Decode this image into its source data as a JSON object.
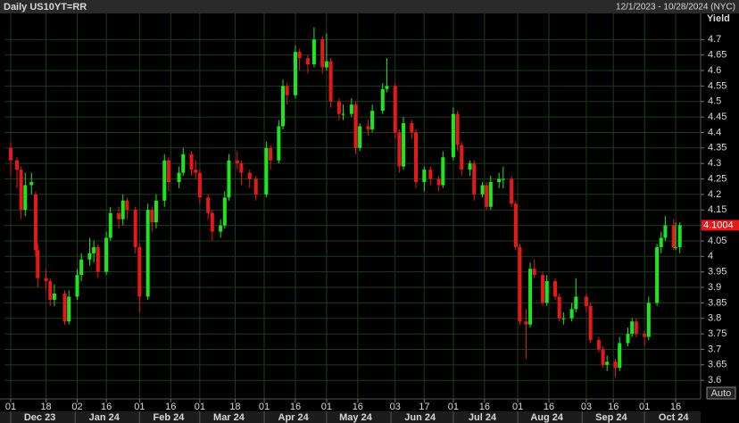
{
  "chart_data": {
    "type": "candlestick",
    "title": "Daily US10YT=RR",
    "subtitle": "12/1/2023 - 10/28/2024 (NYC)",
    "y_label": "Yield",
    "auto_button": "Auto",
    "up_color": "#1ee61e",
    "down_color": "#e81818",
    "grid": true,
    "xlim": [
      "2023-11-28",
      "2024-10-28"
    ],
    "ylim": [
      3.54,
      4.77
    ],
    "yticks": [
      3.6,
      3.65,
      3.7,
      3.75,
      3.8,
      3.85,
      3.9,
      3.95,
      4,
      4.05,
      4.1,
      4.15,
      4.2,
      4.25,
      4.3,
      4.35,
      4.4,
      4.45,
      4.5,
      4.55,
      4.6,
      4.65,
      4.7
    ],
    "xticks": [
      {
        "value": "2023-12-01",
        "label": "01"
      },
      {
        "value": "2023-12-18",
        "label": "18"
      },
      {
        "value": "2024-01-02",
        "label": "02"
      },
      {
        "value": "2024-01-16",
        "label": "16"
      },
      {
        "value": "2024-02-01",
        "label": "01"
      },
      {
        "value": "2024-02-16",
        "label": "16"
      },
      {
        "value": "2024-03-01",
        "label": "01"
      },
      {
        "value": "2024-03-18",
        "label": "18"
      },
      {
        "value": "2024-04-01",
        "label": "01"
      },
      {
        "value": "2024-04-16",
        "label": "16"
      },
      {
        "value": "2024-05-01",
        "label": "01"
      },
      {
        "value": "2024-05-16",
        "label": "16"
      },
      {
        "value": "2024-06-03",
        "label": "03"
      },
      {
        "value": "2024-06-17",
        "label": "17"
      },
      {
        "value": "2024-07-01",
        "label": "01"
      },
      {
        "value": "2024-07-16",
        "label": "16"
      },
      {
        "value": "2024-08-01",
        "label": "01"
      },
      {
        "value": "2024-08-16",
        "label": "16"
      },
      {
        "value": "2024-09-03",
        "label": "03"
      },
      {
        "value": "2024-09-16",
        "label": "16"
      },
      {
        "value": "2024-10-01",
        "label": "01"
      },
      {
        "value": "2024-10-16",
        "label": "16"
      }
    ],
    "month_labels": [
      {
        "value": "2023-12-01",
        "label": "Dec 23"
      },
      {
        "value": "2024-01-01",
        "label": "Jan 24"
      },
      {
        "value": "2024-02-01",
        "label": "Feb 24"
      },
      {
        "value": "2024-03-01",
        "label": "Mar 24"
      },
      {
        "value": "2024-04-01",
        "label": "Apr 24"
      },
      {
        "value": "2024-05-01",
        "label": "May 24"
      },
      {
        "value": "2024-06-01",
        "label": "Jun 24"
      },
      {
        "value": "2024-07-01",
        "label": "Jul 24"
      },
      {
        "value": "2024-08-01",
        "label": "Aug 24"
      },
      {
        "value": "2024-09-01",
        "label": "Sep 24"
      },
      {
        "value": "2024-10-01",
        "label": "Oct 24"
      }
    ],
    "series": [
      {
        "name": "US10YT=RR",
        "x": [
          "2023-12-01",
          "2023-12-04",
          "2023-12-06",
          "2023-12-08",
          "2023-12-11",
          "2023-12-13",
          "2023-12-14",
          "2023-12-18",
          "2023-12-20",
          "2023-12-22",
          "2023-12-27",
          "2023-12-29",
          "2024-01-02",
          "2024-01-04",
          "2024-01-08",
          "2024-01-10",
          "2024-01-12",
          "2024-01-16",
          "2024-01-18",
          "2024-01-22",
          "2024-01-24",
          "2024-01-26",
          "2024-01-30",
          "2024-02-01",
          "2024-02-05",
          "2024-02-07",
          "2024-02-09",
          "2024-02-13",
          "2024-02-15",
          "2024-02-20",
          "2024-02-22",
          "2024-02-26",
          "2024-02-28",
          "2024-03-01",
          "2024-03-05",
          "2024-03-07",
          "2024-03-11",
          "2024-03-13",
          "2024-03-15",
          "2024-03-19",
          "2024-03-21",
          "2024-03-25",
          "2024-03-28",
          "2024-04-02",
          "2024-04-04",
          "2024-04-08",
          "2024-04-10",
          "2024-04-12",
          "2024-04-16",
          "2024-04-18",
          "2024-04-22",
          "2024-04-25",
          "2024-04-29",
          "2024-05-01",
          "2024-05-03",
          "2024-05-07",
          "2024-05-09",
          "2024-05-13",
          "2024-05-15",
          "2024-05-17",
          "2024-05-21",
          "2024-05-23",
          "2024-05-28",
          "2024-05-30",
          "2024-06-03",
          "2024-06-05",
          "2024-06-07",
          "2024-06-11",
          "2024-06-13",
          "2024-06-17",
          "2024-06-20",
          "2024-06-24",
          "2024-06-26",
          "2024-07-01",
          "2024-07-03",
          "2024-07-05",
          "2024-07-09",
          "2024-07-11",
          "2024-07-15",
          "2024-07-17",
          "2024-07-19",
          "2024-07-23",
          "2024-07-25",
          "2024-07-29",
          "2024-07-31",
          "2024-08-02",
          "2024-08-05",
          "2024-08-07",
          "2024-08-09",
          "2024-08-13",
          "2024-08-15",
          "2024-08-19",
          "2024-08-21",
          "2024-08-23",
          "2024-08-27",
          "2024-08-29",
          "2024-09-03",
          "2024-09-05",
          "2024-09-09",
          "2024-09-11",
          "2024-09-13",
          "2024-09-17",
          "2024-09-19",
          "2024-09-23",
          "2024-09-25",
          "2024-09-27",
          "2024-10-01",
          "2024-10-03",
          "2024-10-07",
          "2024-10-09",
          "2024-10-11",
          "2024-10-15",
          "2024-10-16",
          "2024-10-18"
        ],
        "open": [
          4.35,
          4.31,
          4.28,
          4.15,
          4.23,
          4.2,
          4.02,
          3.93,
          3.92,
          3.86,
          3.88,
          3.79,
          3.87,
          3.94,
          3.99,
          4.01,
          4.03,
          3.95,
          4.06,
          4.14,
          4.12,
          4.18,
          4.15,
          4.03,
          3.87,
          4.15,
          4.11,
          4.18,
          4.31,
          4.24,
          4.27,
          4.33,
          4.28,
          4.27,
          4.19,
          4.14,
          4.08,
          4.1,
          4.19,
          4.31,
          4.3,
          4.27,
          4.25,
          4.2,
          4.35,
          4.31,
          4.42,
          4.55,
          4.52,
          4.66,
          4.64,
          4.62,
          4.7,
          4.61,
          4.63,
          4.5,
          4.46,
          4.46,
          4.49,
          4.35,
          4.42,
          4.41,
          4.47,
          4.54,
          4.55,
          4.4,
          4.29,
          4.43,
          4.4,
          4.24,
          4.28,
          4.25,
          4.23,
          4.32,
          4.46,
          4.36,
          4.28,
          4.3,
          4.2,
          4.23,
          4.16,
          4.24,
          4.25,
          4.25,
          4.17,
          4.03,
          3.79,
          3.78,
          3.96,
          3.94,
          3.85,
          3.92,
          3.87,
          3.8,
          3.8,
          3.83,
          3.87,
          3.84,
          3.73,
          3.7,
          3.65,
          3.66,
          3.64,
          3.72,
          3.75,
          3.79,
          3.75,
          3.74,
          3.85,
          4.03,
          4.06,
          4.1,
          4.03,
          4.03
        ],
        "high": [
          4.37,
          4.32,
          4.29,
          4.27,
          4.27,
          4.21,
          4.04,
          3.96,
          3.93,
          3.91,
          3.89,
          3.89,
          3.96,
          4.01,
          4.06,
          4.05,
          4.04,
          4.08,
          4.16,
          4.16,
          4.2,
          4.19,
          4.16,
          4.04,
          4.17,
          4.16,
          4.2,
          4.33,
          4.32,
          4.29,
          4.35,
          4.34,
          4.31,
          4.28,
          4.2,
          4.15,
          4.12,
          4.21,
          4.33,
          4.34,
          4.31,
          4.28,
          4.26,
          4.37,
          4.36,
          4.44,
          4.57,
          4.56,
          4.68,
          4.67,
          4.65,
          4.74,
          4.71,
          4.72,
          4.64,
          4.51,
          4.49,
          4.51,
          4.5,
          4.43,
          4.44,
          4.49,
          4.56,
          4.64,
          4.56,
          4.41,
          4.45,
          4.44,
          4.41,
          4.29,
          4.29,
          4.26,
          4.34,
          4.48,
          4.47,
          4.37,
          4.31,
          4.31,
          4.24,
          4.24,
          4.26,
          4.27,
          4.29,
          4.26,
          4.18,
          4.04,
          3.83,
          3.98,
          3.99,
          3.95,
          3.94,
          3.93,
          3.88,
          3.82,
          3.85,
          3.93,
          3.88,
          3.85,
          3.74,
          3.71,
          3.68,
          3.67,
          3.74,
          3.77,
          3.8,
          3.8,
          3.76,
          3.87,
          4.04,
          4.08,
          4.13,
          4.12,
          4.11,
          4.11
        ],
        "low": [
          4.26,
          4.22,
          4.12,
          4.13,
          4.2,
          4.0,
          3.9,
          3.89,
          3.84,
          3.84,
          3.78,
          3.78,
          3.86,
          3.92,
          3.97,
          3.98,
          3.93,
          3.94,
          4.05,
          4.09,
          4.1,
          4.12,
          4.01,
          3.82,
          3.86,
          4.08,
          4.09,
          4.16,
          4.21,
          4.22,
          4.26,
          4.26,
          4.25,
          4.17,
          4.12,
          4.05,
          4.06,
          4.09,
          4.18,
          4.28,
          4.23,
          4.22,
          4.18,
          4.19,
          4.28,
          4.3,
          4.41,
          4.49,
          4.51,
          4.6,
          4.59,
          4.61,
          4.59,
          4.6,
          4.48,
          4.44,
          4.44,
          4.45,
          4.33,
          4.34,
          4.39,
          4.4,
          4.46,
          4.53,
          4.38,
          4.27,
          4.28,
          4.38,
          4.22,
          4.21,
          4.23,
          4.21,
          4.22,
          4.31,
          4.34,
          4.26,
          4.26,
          4.18,
          4.19,
          4.15,
          4.15,
          4.22,
          4.22,
          4.16,
          4.02,
          3.78,
          3.67,
          3.77,
          3.93,
          3.84,
          3.84,
          3.86,
          3.79,
          3.78,
          3.79,
          3.82,
          3.82,
          3.72,
          3.69,
          3.64,
          3.63,
          3.61,
          3.63,
          3.71,
          3.74,
          3.74,
          3.71,
          3.73,
          3.84,
          4.01,
          4.05,
          4.02,
          4.02,
          4.01
        ],
        "close": [
          4.31,
          4.28,
          4.15,
          4.23,
          4.24,
          4.02,
          3.93,
          3.92,
          3.86,
          3.88,
          3.79,
          3.87,
          3.94,
          3.99,
          4.01,
          4.03,
          3.95,
          4.06,
          4.14,
          4.12,
          4.18,
          4.15,
          4.03,
          3.87,
          4.15,
          4.11,
          4.18,
          4.31,
          4.24,
          4.27,
          4.33,
          4.28,
          4.27,
          4.19,
          4.14,
          4.08,
          4.1,
          4.19,
          4.31,
          4.3,
          4.27,
          4.25,
          4.2,
          4.35,
          4.31,
          4.42,
          4.55,
          4.52,
          4.66,
          4.64,
          4.62,
          4.7,
          4.61,
          4.63,
          4.5,
          4.46,
          4.46,
          4.49,
          4.35,
          4.42,
          4.41,
          4.47,
          4.54,
          4.55,
          4.4,
          4.29,
          4.43,
          4.4,
          4.24,
          4.28,
          4.25,
          4.23,
          4.32,
          4.46,
          4.36,
          4.28,
          4.3,
          4.2,
          4.23,
          4.16,
          4.24,
          4.25,
          4.25,
          4.17,
          4.03,
          3.79,
          3.78,
          3.96,
          3.94,
          3.85,
          3.92,
          3.87,
          3.8,
          3.8,
          3.83,
          3.87,
          3.84,
          3.73,
          3.7,
          3.65,
          3.66,
          3.64,
          3.72,
          3.75,
          3.79,
          3.75,
          3.74,
          3.85,
          4.03,
          4.06,
          4.1,
          4.03,
          4.03,
          4.1004
        ]
      }
    ]
  }
}
